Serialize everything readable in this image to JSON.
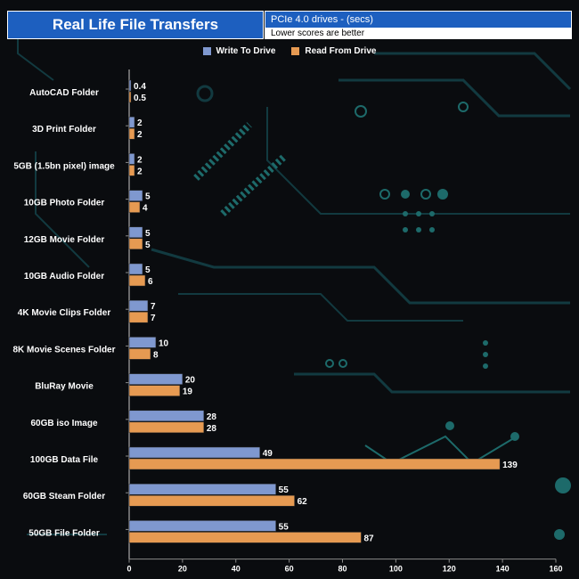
{
  "header": {
    "title": "Real Life File Transfers",
    "subtitle": "PCIe 4.0 drives - (secs)",
    "note": "Lower scores are better"
  },
  "colors": {
    "write": "#7f98cf",
    "read": "#e69a52",
    "background": "#0a0c0f",
    "circuit": "#123a40",
    "circuit_accent": "#1d6a6a"
  },
  "chart_data": {
    "type": "bar",
    "orientation": "horizontal",
    "title": "Real Life File Transfers",
    "xlabel": "",
    "ylabel": "",
    "xlim": [
      0,
      160
    ],
    "x_ticks": [
      0,
      20,
      40,
      60,
      80,
      100,
      120,
      140,
      160
    ],
    "legend_position": "top-center",
    "categories": [
      "AutoCAD Folder",
      "3D Print Folder",
      "5GB (1.5bn pixel) image",
      "10GB Photo Folder",
      "12GB Movie Folder",
      "10GB Audio Folder",
      "4K Movie Clips Folder",
      "8K Movie Scenes Folder",
      "BluRay Movie",
      "60GB iso Image",
      "100GB Data File",
      "60GB Steam Folder",
      "50GB File Folder"
    ],
    "series": [
      {
        "name": "Write To  Drive",
        "values": [
          0.4,
          2,
          2,
          5,
          5,
          5,
          7,
          10,
          20,
          28,
          49,
          55,
          55
        ]
      },
      {
        "name": "Read From  Drive",
        "values": [
          0.5,
          2,
          2,
          4,
          5,
          6,
          7,
          8,
          19,
          28,
          139,
          62,
          87
        ]
      }
    ]
  }
}
